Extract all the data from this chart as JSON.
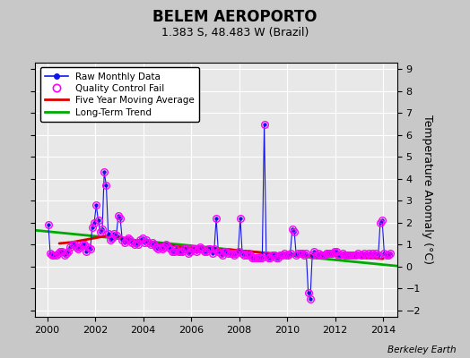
{
  "title": "BELEM AEROPORTO",
  "subtitle": "1.383 S, 48.483 W (Brazil)",
  "ylabel": "Temperature Anomaly (°C)",
  "credit": "Berkeley Earth",
  "xlim": [
    1999.5,
    2014.58
  ],
  "ylim": [
    -2.3,
    9.3
  ],
  "yticks": [
    -2,
    -1,
    0,
    1,
    2,
    3,
    4,
    5,
    6,
    7,
    8,
    9
  ],
  "xticks": [
    2000,
    2002,
    2004,
    2006,
    2008,
    2010,
    2012,
    2014
  ],
  "bg_color": "#e8e8e8",
  "plot_bg_color": "#e8e8e8",
  "outer_bg": "#c8c8c8",
  "grid_color": "white",
  "raw_color": "#1414e6",
  "qc_color": "#ff00ff",
  "ma_color": "#dd0000",
  "trend_color": "#00aa00",
  "raw_x": [
    2000.042,
    2000.125,
    2000.208,
    2000.292,
    2000.375,
    2000.458,
    2000.542,
    2000.625,
    2000.708,
    2000.792,
    2000.875,
    2000.958,
    2001.042,
    2001.125,
    2001.208,
    2001.292,
    2001.375,
    2001.458,
    2001.542,
    2001.625,
    2001.708,
    2001.792,
    2001.875,
    2001.958,
    2002.042,
    2002.125,
    2002.208,
    2002.292,
    2002.375,
    2002.458,
    2002.542,
    2002.625,
    2002.708,
    2002.792,
    2002.875,
    2002.958,
    2003.042,
    2003.125,
    2003.208,
    2003.292,
    2003.375,
    2003.458,
    2003.542,
    2003.625,
    2003.708,
    2003.792,
    2003.875,
    2003.958,
    2004.042,
    2004.125,
    2004.208,
    2004.292,
    2004.375,
    2004.458,
    2004.542,
    2004.625,
    2004.708,
    2004.792,
    2004.875,
    2004.958,
    2005.042,
    2005.125,
    2005.208,
    2005.292,
    2005.375,
    2005.458,
    2005.542,
    2005.625,
    2005.708,
    2005.792,
    2005.875,
    2005.958,
    2006.042,
    2006.125,
    2006.208,
    2006.292,
    2006.375,
    2006.458,
    2006.542,
    2006.625,
    2006.708,
    2006.792,
    2006.875,
    2006.958,
    2007.042,
    2007.125,
    2007.208,
    2007.292,
    2007.375,
    2007.458,
    2007.542,
    2007.625,
    2007.708,
    2007.792,
    2007.875,
    2007.958,
    2008.042,
    2008.125,
    2008.208,
    2008.292,
    2008.375,
    2008.458,
    2008.542,
    2008.625,
    2008.708,
    2008.792,
    2008.875,
    2008.958,
    2009.042,
    2009.125,
    2009.208,
    2009.292,
    2009.375,
    2009.458,
    2009.542,
    2009.625,
    2009.708,
    2009.792,
    2009.875,
    2009.958,
    2010.042,
    2010.125,
    2010.208,
    2010.292,
    2010.375,
    2010.458,
    2010.542,
    2010.625,
    2010.708,
    2010.792,
    2010.875,
    2010.958,
    2011.042,
    2011.125,
    2011.208,
    2011.292,
    2011.375,
    2011.458,
    2011.542,
    2011.625,
    2011.708,
    2011.792,
    2011.875,
    2011.958,
    2012.042,
    2012.125,
    2012.208,
    2012.292,
    2012.375,
    2012.458,
    2012.542,
    2012.625,
    2012.708,
    2012.792,
    2012.875,
    2012.958,
    2013.042,
    2013.125,
    2013.208,
    2013.292,
    2013.375,
    2013.458,
    2013.542,
    2013.625,
    2013.708,
    2013.792,
    2013.875,
    2013.958,
    2014.042,
    2014.125,
    2014.208,
    2014.292
  ],
  "raw_y": [
    1.9,
    0.6,
    0.5,
    0.5,
    0.5,
    0.6,
    0.7,
    0.7,
    0.5,
    0.6,
    0.7,
    0.9,
    1.0,
    1.0,
    0.9,
    0.8,
    0.9,
    1.0,
    1.0,
    0.7,
    0.9,
    0.8,
    1.8,
    2.0,
    2.8,
    2.1,
    1.6,
    1.7,
    4.3,
    3.7,
    1.5,
    1.2,
    1.3,
    1.5,
    1.4,
    2.3,
    2.2,
    1.2,
    1.1,
    1.2,
    1.3,
    1.2,
    1.1,
    1.0,
    1.1,
    1.0,
    1.2,
    1.3,
    1.1,
    1.2,
    1.1,
    1.0,
    1.1,
    1.0,
    0.9,
    0.8,
    0.9,
    0.8,
    0.9,
    1.0,
    0.9,
    0.8,
    0.7,
    0.7,
    0.8,
    0.7,
    0.7,
    0.7,
    0.8,
    0.8,
    0.6,
    0.7,
    0.8,
    0.8,
    0.7,
    0.8,
    0.9,
    0.8,
    0.7,
    0.7,
    0.8,
    0.8,
    0.6,
    0.8,
    2.2,
    0.7,
    0.6,
    0.5,
    0.7,
    0.7,
    0.6,
    0.6,
    0.6,
    0.5,
    0.6,
    0.7,
    2.2,
    0.6,
    0.5,
    0.5,
    0.6,
    0.5,
    0.4,
    0.4,
    0.4,
    0.4,
    0.4,
    0.4,
    6.5,
    0.5,
    0.4,
    0.4,
    0.5,
    0.5,
    0.4,
    0.4,
    0.5,
    0.5,
    0.6,
    0.5,
    0.5,
    0.6,
    1.7,
    1.6,
    0.5,
    0.6,
    0.6,
    0.6,
    0.5,
    0.6,
    -1.2,
    -1.5,
    0.5,
    0.7,
    0.5,
    0.6,
    0.5,
    0.5,
    0.5,
    0.6,
    0.6,
    0.6,
    0.6,
    0.7,
    0.7,
    0.5,
    0.5,
    0.6,
    0.5,
    0.5,
    0.5,
    0.5,
    0.5,
    0.5,
    0.5,
    0.6,
    0.5,
    0.5,
    0.6,
    0.5,
    0.6,
    0.5,
    0.6,
    0.5,
    0.6,
    0.5,
    2.0,
    2.1,
    0.6,
    0.5,
    0.5,
    0.6
  ],
  "qc_fail_x": [
    2000.042,
    2000.125,
    2000.208,
    2000.292,
    2000.375,
    2000.458,
    2000.542,
    2000.625,
    2000.708,
    2000.792,
    2000.875,
    2000.958,
    2001.042,
    2001.125,
    2001.208,
    2001.292,
    2001.375,
    2001.458,
    2001.542,
    2001.625,
    2001.708,
    2001.792,
    2001.875,
    2001.958,
    2002.042,
    2002.125,
    2002.208,
    2002.292,
    2002.375,
    2002.458,
    2002.542,
    2002.625,
    2002.708,
    2002.792,
    2002.875,
    2002.958,
    2003.042,
    2003.125,
    2003.208,
    2003.292,
    2003.375,
    2003.458,
    2003.542,
    2003.625,
    2003.708,
    2003.792,
    2003.875,
    2003.958,
    2004.042,
    2004.125,
    2004.208,
    2004.292,
    2004.375,
    2004.458,
    2004.542,
    2004.625,
    2004.708,
    2004.792,
    2004.875,
    2004.958,
    2005.042,
    2005.125,
    2005.208,
    2005.292,
    2005.375,
    2005.458,
    2005.542,
    2005.625,
    2005.708,
    2005.792,
    2005.875,
    2005.958,
    2006.042,
    2006.125,
    2006.208,
    2006.292,
    2006.375,
    2006.458,
    2006.542,
    2006.625,
    2006.708,
    2006.792,
    2006.875,
    2006.958,
    2007.042,
    2007.125,
    2007.208,
    2007.292,
    2007.375,
    2007.458,
    2007.542,
    2007.625,
    2007.708,
    2007.792,
    2007.875,
    2007.958,
    2008.042,
    2008.125,
    2008.208,
    2008.292,
    2008.375,
    2008.458,
    2008.542,
    2008.625,
    2008.708,
    2008.792,
    2008.875,
    2008.958,
    2009.042,
    2009.125,
    2009.208,
    2009.292,
    2009.375,
    2009.458,
    2009.542,
    2009.625,
    2009.708,
    2009.792,
    2009.875,
    2009.958,
    2010.042,
    2010.125,
    2010.208,
    2010.292,
    2010.375,
    2010.458,
    2010.542,
    2010.625,
    2010.708,
    2010.792,
    2010.875,
    2010.958,
    2011.042,
    2011.125,
    2011.208,
    2011.292,
    2011.375,
    2011.458,
    2011.542,
    2011.625,
    2011.708,
    2011.792,
    2011.875,
    2011.958,
    2012.042,
    2012.125,
    2012.208,
    2012.292,
    2012.375,
    2012.458,
    2012.542,
    2012.625,
    2012.708,
    2012.792,
    2012.875,
    2012.958,
    2013.042,
    2013.125,
    2013.208,
    2013.292,
    2013.375,
    2013.458,
    2013.542,
    2013.625,
    2013.708,
    2013.792,
    2013.875,
    2013.958,
    2014.042,
    2014.125,
    2014.208,
    2014.292
  ],
  "qc_fail_y": [
    1.9,
    0.6,
    0.5,
    0.5,
    0.5,
    0.6,
    0.7,
    0.7,
    0.5,
    0.6,
    0.7,
    0.9,
    1.0,
    1.0,
    0.9,
    0.8,
    0.9,
    1.0,
    1.0,
    0.7,
    0.9,
    0.8,
    1.8,
    2.0,
    2.8,
    2.1,
    1.6,
    1.7,
    4.3,
    3.7,
    1.5,
    1.2,
    1.3,
    1.5,
    1.4,
    2.3,
    2.2,
    1.2,
    1.1,
    1.2,
    1.3,
    1.2,
    1.1,
    1.0,
    1.1,
    1.0,
    1.2,
    1.3,
    1.1,
    1.2,
    1.1,
    1.0,
    1.1,
    1.0,
    0.9,
    0.8,
    0.9,
    0.8,
    0.9,
    1.0,
    0.9,
    0.8,
    0.7,
    0.7,
    0.8,
    0.7,
    0.7,
    0.7,
    0.8,
    0.8,
    0.6,
    0.7,
    0.8,
    0.8,
    0.7,
    0.8,
    0.9,
    0.8,
    0.7,
    0.7,
    0.8,
    0.8,
    0.6,
    0.8,
    2.2,
    0.7,
    0.6,
    0.5,
    0.7,
    0.7,
    0.6,
    0.6,
    0.6,
    0.5,
    0.6,
    0.7,
    2.2,
    0.6,
    0.5,
    0.5,
    0.6,
    0.5,
    0.4,
    0.4,
    0.4,
    0.4,
    0.4,
    0.4,
    6.5,
    0.5,
    0.4,
    0.4,
    0.5,
    0.5,
    0.4,
    0.4,
    0.5,
    0.5,
    0.6,
    0.5,
    0.5,
    0.6,
    1.7,
    1.6,
    0.5,
    0.6,
    0.6,
    0.6,
    0.5,
    0.6,
    -1.2,
    -1.5,
    0.5,
    0.7,
    0.5,
    0.6,
    0.5,
    0.5,
    0.5,
    0.6,
    0.6,
    0.6,
    0.6,
    0.7,
    0.7,
    0.5,
    0.5,
    0.6,
    0.5,
    0.5,
    0.5,
    0.5,
    0.5,
    0.5,
    0.5,
    0.6,
    0.5,
    0.5,
    0.6,
    0.5,
    0.6,
    0.5,
    0.6,
    0.5,
    0.6,
    0.5,
    2.0,
    2.1,
    0.6,
    0.5,
    0.5,
    0.6
  ],
  "trend_x": [
    1999.5,
    2014.58
  ],
  "trend_y": [
    1.65,
    0.02
  ],
  "ma_x": [
    2000.5,
    2001.0,
    2001.5,
    2002.0,
    2002.5,
    2003.0,
    2003.5,
    2004.0,
    2004.5,
    2005.0,
    2005.5,
    2006.0,
    2006.5,
    2007.0,
    2007.5,
    2008.0,
    2008.5,
    2009.0,
    2009.5,
    2010.0,
    2010.5,
    2011.0,
    2011.5,
    2012.0,
    2012.5,
    2013.0,
    2013.5,
    2014.0
  ],
  "ma_y": [
    1.05,
    1.1,
    1.2,
    1.3,
    1.4,
    1.35,
    1.2,
    1.1,
    1.05,
    1.0,
    0.9,
    0.85,
    0.82,
    0.8,
    0.78,
    0.72,
    0.68,
    0.62,
    0.58,
    0.55,
    0.52,
    0.5,
    0.48,
    0.48,
    0.45,
    0.42,
    0.38,
    0.35
  ],
  "title_fontsize": 12,
  "subtitle_fontsize": 9,
  "tick_fontsize": 8,
  "legend_fontsize": 7.5,
  "credit_fontsize": 7.5
}
